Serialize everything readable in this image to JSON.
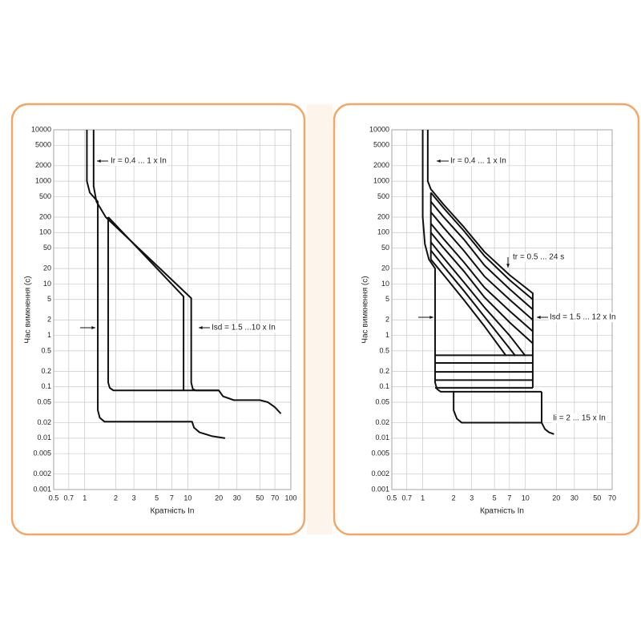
{
  "chart_data": [
    {
      "type": "line",
      "x_label": "Кратність In",
      "y_label": "Час вимкнення (с)",
      "color": "#111111",
      "xscale": "log",
      "yscale": "log",
      "grid": true,
      "xlim": [
        0.5,
        100
      ],
      "ylim": [
        0.001,
        10000
      ],
      "xticks": [
        0.5,
        0.7,
        1,
        2,
        3,
        5,
        7,
        10,
        20,
        30,
        50,
        70,
        100
      ],
      "yticks": [
        0.001,
        0.002,
        0.005,
        0.01,
        0.02,
        0.05,
        0.1,
        0.2,
        0.5,
        1,
        2,
        5,
        10,
        20,
        50,
        100,
        200,
        500,
        1000,
        2000,
        5000,
        10000
      ],
      "annotations": [
        "Ir = 0.4 ... 1 x In",
        "Isd = 1.5 ...10 x In"
      ],
      "series": [
        {
          "x": [
            1.05,
            1.05,
            1.12,
            1.34,
            1.34,
            1.4,
            1.55,
            11,
            11.5,
            13,
            17,
            23
          ],
          "values": [
            10000,
            1000,
            600,
            400,
            0.035,
            0.025,
            0.021,
            0.021,
            0.016,
            0.013,
            0.011,
            0.01
          ]
        },
        {
          "x": [
            1.22,
            1.22,
            1.3,
            1.6,
            10.8,
            10.8,
            11.2,
            12,
            20,
            22,
            28,
            50,
            60,
            70,
            80
          ],
          "values": [
            10000,
            800,
            400,
            200,
            5.3,
            0.12,
            0.09,
            0.085,
            0.085,
            0.065,
            0.055,
            0.055,
            0.05,
            0.04,
            0.03
          ]
        },
        {
          "x": [
            1.69,
            9.1,
            9.1
          ],
          "values": [
            200,
            5.7,
            0.085
          ]
        },
        {
          "x": [
            1.69,
            1.69,
            1.75,
            1.9,
            20
          ],
          "values": [
            200,
            0.12,
            0.095,
            0.085,
            0.085
          ]
        }
      ]
    },
    {
      "type": "line",
      "x_label": "Кратність In",
      "y_label": "Час вимкнення (с)",
      "color": "#111111",
      "xscale": "log",
      "yscale": "log",
      "grid": true,
      "xlim": [
        0.5,
        70
      ],
      "ylim": [
        0.001,
        10000
      ],
      "xticks": [
        0.5,
        0.7,
        1,
        2,
        3,
        5,
        7,
        10,
        20,
        30,
        50,
        70
      ],
      "yticks": [
        0.001,
        0.002,
        0.005,
        0.01,
        0.02,
        0.05,
        0.1,
        0.2,
        0.5,
        1,
        2,
        5,
        10,
        20,
        50,
        100,
        200,
        500,
        1000,
        2000,
        5000,
        10000
      ],
      "annotations": [
        "Ir = 0.4 ... 1 x In",
        "tr = 0.5 ... 24 s",
        "Isd = 1.5 ... 12 x In",
        "Ii = 2 ... 15 x In"
      ],
      "series": [
        {
          "x": [
            1,
            1,
            1.05,
            1.15,
            1.32,
            1.32,
            1.38,
            1.5,
            14.4
          ],
          "values": [
            10000,
            200,
            60,
            30,
            20,
            0.12,
            0.09,
            0.08,
            0.08
          ]
        },
        {
          "x": [
            1.12,
            1.12,
            1.2,
            1.6,
            2.5,
            4,
            7,
            11.8,
            11.8
          ],
          "values": [
            10000,
            1000,
            700,
            350,
            130,
            42,
            15,
            6.6,
            0.095
          ]
        },
        {
          "x": [
            1.2,
            1.2
          ],
          "values": [
            600,
            30
          ]
        },
        {
          "x": [
            1.2,
            1.6,
            2.5,
            4,
            7,
            11.8
          ],
          "values": [
            600,
            300,
            110,
            35,
            12,
            5
          ]
        },
        {
          "x": [
            1.2,
            1.6,
            2.5,
            4,
            7,
            11.8
          ],
          "values": [
            400,
            200,
            75,
            23,
            8,
            3.2
          ]
        },
        {
          "x": [
            1.2,
            1.6,
            2.5,
            4,
            7,
            11.8
          ],
          "values": [
            250,
            125,
            45,
            14,
            5,
            2
          ]
        },
        {
          "x": [
            1.2,
            1.6,
            2.5,
            4,
            7,
            11.8
          ],
          "values": [
            150,
            75,
            27,
            8.5,
            3,
            1.2
          ]
        },
        {
          "x": [
            1.2,
            1.6,
            2.5,
            4,
            7,
            11.8
          ],
          "values": [
            100,
            50,
            18,
            5.5,
            1.8,
            0.7
          ]
        },
        {
          "x": [
            1.2,
            1.6,
            2.5,
            4,
            7,
            10
          ],
          "values": [
            65,
            32,
            11,
            3.5,
            1,
            0.4
          ]
        },
        {
          "x": [
            1.2,
            1.6,
            2.5,
            4,
            8
          ],
          "values": [
            45,
            22,
            7.5,
            2.3,
            0.4
          ]
        },
        {
          "x": [
            1.2,
            1.6,
            2.5,
            4,
            6.5
          ],
          "values": [
            30,
            15,
            5,
            1.5,
            0.4
          ]
        },
        {
          "x": [
            1.32,
            11.8
          ],
          "values": [
            0.41,
            0.41
          ]
        },
        {
          "x": [
            1.32,
            11.8
          ],
          "values": [
            0.29,
            0.29
          ]
        },
        {
          "x": [
            1.32,
            11.8
          ],
          "values": [
            0.195,
            0.195
          ]
        },
        {
          "x": [
            1.32,
            11.8
          ],
          "values": [
            0.135,
            0.135
          ]
        },
        {
          "x": [
            1.32,
            11.8
          ],
          "values": [
            0.095,
            0.095
          ]
        },
        {
          "x": [
            2,
            2,
            2.15,
            2.4,
            14.4,
            14.4
          ],
          "values": [
            0.08,
            0.035,
            0.024,
            0.02,
            0.02,
            0.08
          ]
        },
        {
          "x": [
            14.4,
            15.5,
            17,
            19
          ],
          "values": [
            0.02,
            0.015,
            0.013,
            0.012
          ]
        }
      ]
    }
  ]
}
